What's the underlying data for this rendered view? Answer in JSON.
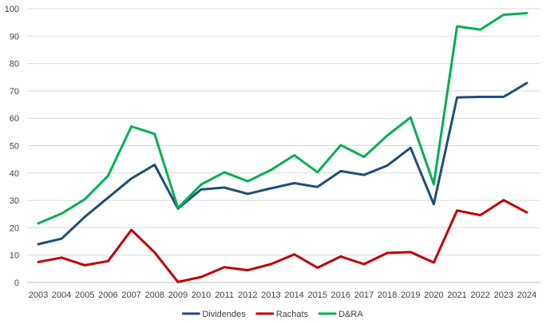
{
  "chart_data": {
    "type": "line",
    "title": "",
    "xlabel": "",
    "ylabel": "",
    "ylim": [
      0,
      100
    ],
    "yticks": [
      0,
      10,
      20,
      30,
      40,
      50,
      60,
      70,
      80,
      90,
      100
    ],
    "grid": true,
    "legend_position": "bottom",
    "categories": [
      "2003",
      "2004",
      "2005",
      "2006",
      "2007",
      "2008",
      "2009",
      "2010",
      "2011",
      "2012",
      "2013",
      "2014",
      "2015",
      "2016",
      "2017",
      "2018",
      "2019",
      "2020",
      "2021",
      "2022",
      "2023",
      "2024"
    ],
    "series": [
      {
        "name": "Dividendes",
        "color": "#1f4e79",
        "values": [
          14.0,
          16.0,
          24.0,
          31.0,
          38.0,
          43.0,
          27.0,
          34.0,
          34.7,
          32.4,
          34.4,
          36.3,
          34.9,
          40.7,
          39.3,
          42.7,
          49.2,
          28.6,
          67.6,
          67.8,
          67.8,
          72.9
        ]
      },
      {
        "name": "Rachats",
        "color": "#c00000",
        "values": [
          7.5,
          9.1,
          6.3,
          7.8,
          19.2,
          11.0,
          0.2,
          2.0,
          5.6,
          4.5,
          6.7,
          10.3,
          5.4,
          9.5,
          6.7,
          10.8,
          11.1,
          7.3,
          26.3,
          24.6,
          30.1,
          25.6
        ]
      },
      {
        "name": "D&RA",
        "color": "#00b050",
        "values": [
          21.6,
          25.2,
          30.4,
          39.0,
          57.0,
          54.3,
          27.2,
          35.8,
          40.3,
          37.0,
          41.1,
          46.5,
          40.3,
          50.2,
          45.9,
          53.7,
          60.3,
          35.9,
          93.6,
          92.4,
          97.8,
          98.4
        ]
      }
    ]
  }
}
